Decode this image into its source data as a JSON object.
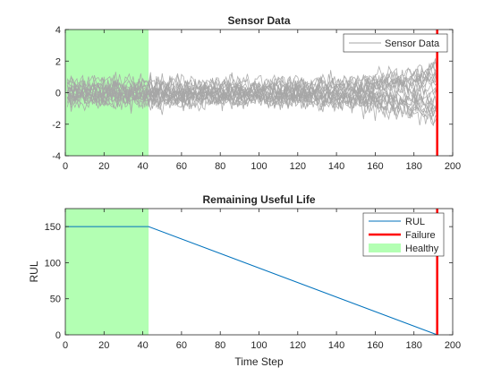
{
  "chart_data": [
    {
      "type": "line",
      "title": "Sensor Data",
      "xlabel": "",
      "ylabel": "",
      "xlim": [
        0,
        200
      ],
      "ylim": [
        -4,
        4
      ],
      "xticks": [
        "0",
        "20",
        "40",
        "60",
        "80",
        "100",
        "120",
        "140",
        "160",
        "180",
        "200"
      ],
      "yticks": [
        "-4",
        "-2",
        "0",
        "2",
        "4"
      ],
      "ytick_values": [
        -4,
        -2,
        0,
        2,
        4
      ],
      "grid": false,
      "legend_position": "top-right",
      "legend": [
        "Sensor Data"
      ],
      "series_count": 20,
      "x_max": 192,
      "band_centre": 0,
      "band_half_width_start": 1.5,
      "band_half_width_end": 2.6,
      "healthy_region": [
        0,
        43
      ],
      "failure_x": 192,
      "colors": {
        "sensor": "#a6a6a6",
        "healthy": "#b3ffb3",
        "failure": "#ff0000"
      }
    },
    {
      "type": "line",
      "title": "Remaining Useful Life",
      "xlabel": "Time Step",
      "ylabel": "RUL",
      "xlim": [
        0,
        200
      ],
      "ylim": [
        0,
        175
      ],
      "xticks": [
        "0",
        "20",
        "40",
        "60",
        "80",
        "100",
        "120",
        "140",
        "160",
        "180",
        "200"
      ],
      "yticks": [
        "0",
        "50",
        "100",
        "150"
      ],
      "ytick_values": [
        0,
        50,
        100,
        150
      ],
      "grid": false,
      "legend_position": "top-right",
      "series": [
        {
          "name": "RUL",
          "x": [
            0,
            43,
            192
          ],
          "y": [
            150,
            150,
            0
          ],
          "color": "#0072bd"
        }
      ],
      "legend": [
        "RUL",
        "Failure",
        "Healthy"
      ],
      "healthy_region": [
        0,
        43
      ],
      "failure_x": 192,
      "colors": {
        "healthy": "#b3ffb3",
        "failure": "#ff0000",
        "rul": "#0072bd"
      }
    }
  ]
}
